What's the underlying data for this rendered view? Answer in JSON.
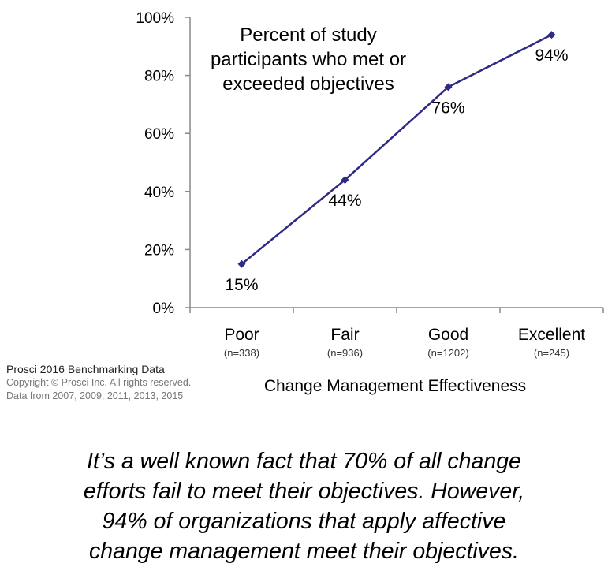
{
  "chart_data": {
    "type": "line",
    "title_lines": [
      "Percent of study",
      "participants who met or",
      "exceeded objectives"
    ],
    "xlabel": "Change Management Effectiveness",
    "categories": [
      "Poor",
      "Fair",
      "Good",
      "Excellent"
    ],
    "category_notes": [
      "(n=338)",
      "(n=936)",
      "(n=1202)",
      "(n=245)"
    ],
    "values": [
      15,
      44,
      76,
      94
    ],
    "data_labels": [
      "15%",
      "44%",
      "76%",
      "94%"
    ],
    "ylim": [
      0,
      100
    ],
    "yticks": [
      0,
      20,
      40,
      60,
      80,
      100
    ],
    "ytick_labels": [
      "0%",
      "20%",
      "40%",
      "60%",
      "80%",
      "100%"
    ],
    "line_color": "#2e2a85",
    "grid": false
  },
  "source": {
    "line1": "Prosci 2016 Benchmarking Data",
    "line2": "Copyright © Prosci Inc. All rights reserved.",
    "line3": "Data from 2007, 2009, 2011, 2013, 2015"
  },
  "caption": {
    "line1": "It’s a well known fact that 70% of all change",
    "line2": "efforts fail to meet their objectives. However,",
    "line3": "94% of organizations that apply affective",
    "line4": "change management meet their objectives."
  }
}
